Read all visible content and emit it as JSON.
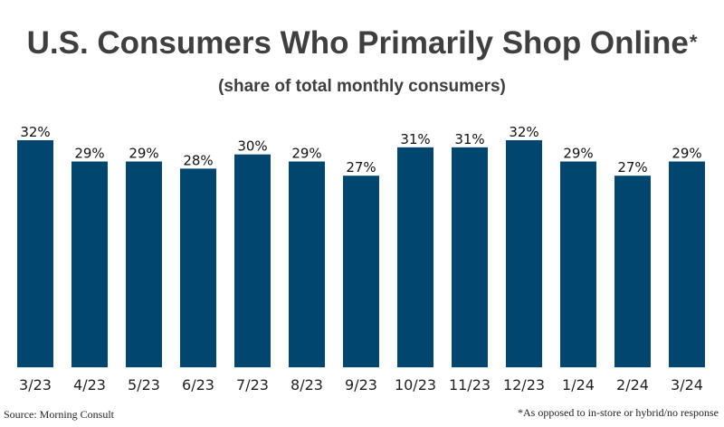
{
  "header": {
    "title": "U.S. Consumers Who Primarily Shop Online",
    "title_marker": "*",
    "subtitle": "(share of total monthly consumers)"
  },
  "footer": {
    "source": "Source: Morning Consult",
    "footnote": "*As opposed to in-store or hybrid/no response"
  },
  "chart_data": {
    "type": "bar",
    "title": "U.S. Consumers Who Primarily Shop Online*",
    "subtitle": "(share of total monthly consumers)",
    "categories": [
      "3/23",
      "4/23",
      "5/23",
      "6/23",
      "7/23",
      "8/23",
      "9/23",
      "10/23",
      "11/23",
      "12/23",
      "1/24",
      "2/24",
      "3/24"
    ],
    "values": [
      32,
      29,
      29,
      28,
      30,
      29,
      27,
      31,
      31,
      32,
      29,
      27,
      29
    ],
    "data_labels": [
      "32%",
      "29%",
      "29%",
      "28%",
      "30%",
      "29%",
      "27%",
      "31%",
      "31%",
      "32%",
      "29%",
      "27%",
      "29%"
    ],
    "ylim": [
      0,
      32
    ],
    "grid": false,
    "legend": "none",
    "bar_color": "#00466e"
  }
}
